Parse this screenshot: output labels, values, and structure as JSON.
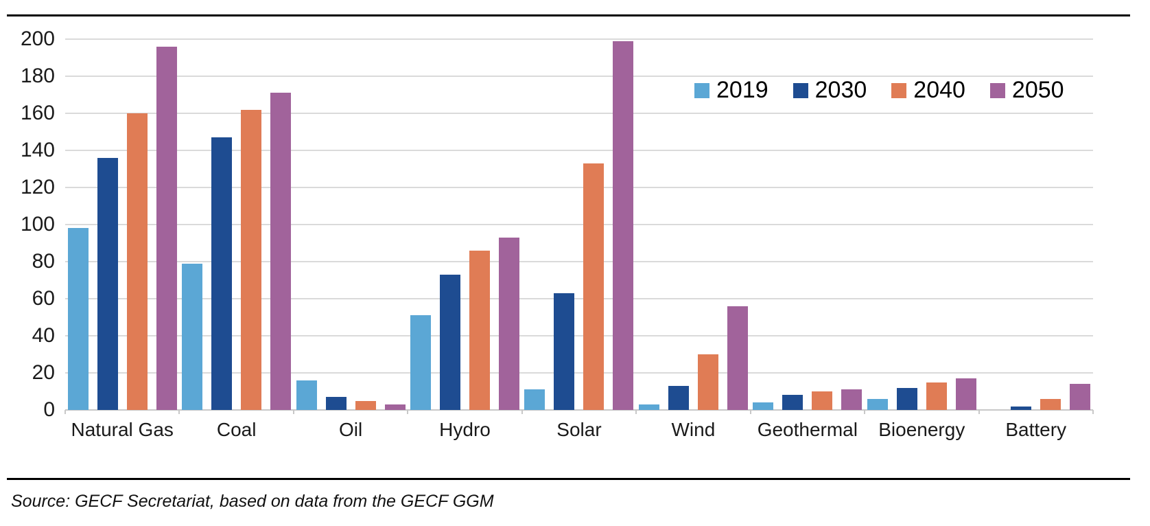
{
  "chart_data": {
    "type": "bar",
    "title": "",
    "xlabel": "",
    "ylabel": "",
    "categories": [
      "Natural Gas",
      "Coal",
      "Oil",
      "Hydro",
      "Solar",
      "Wind",
      "Geothermal",
      "Bioenergy",
      "Battery"
    ],
    "series": [
      {
        "name": "2019",
        "color": "#5ba7d5",
        "values": [
          98,
          79,
          16,
          51,
          11,
          3,
          4,
          6,
          0
        ]
      },
      {
        "name": "2030",
        "color": "#1e4c91",
        "values": [
          136,
          147,
          7,
          73,
          63,
          13,
          8,
          12,
          2
        ]
      },
      {
        "name": "2040",
        "color": "#e07c55",
        "values": [
          160,
          162,
          5,
          86,
          133,
          30,
          10,
          15,
          6
        ]
      },
      {
        "name": "2050",
        "color": "#a1639b",
        "values": [
          196,
          171,
          3,
          93,
          199,
          56,
          11,
          17,
          14
        ]
      }
    ],
    "ylim": [
      0,
      200
    ],
    "ytick_step": 20,
    "ytick_labels": [
      "0",
      "20",
      "40",
      "60",
      "80",
      "100",
      "120",
      "140",
      "160",
      "180",
      "200"
    ],
    "grid": true,
    "gridline_color": "#dadada",
    "legend_position": "top-right"
  },
  "source_note": "Source: GECF Secretariat, based on data from the GECF GGM"
}
